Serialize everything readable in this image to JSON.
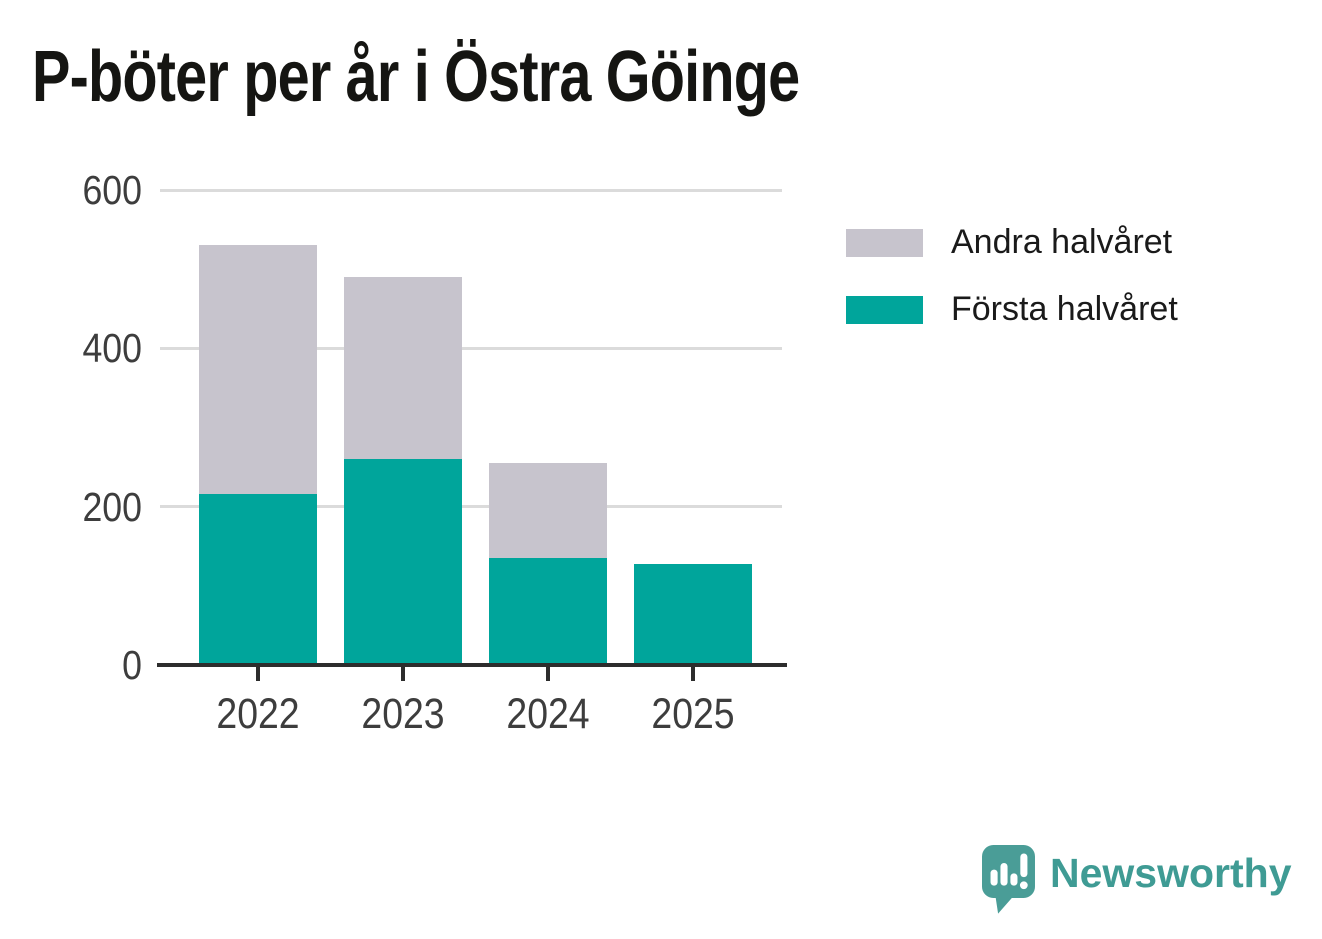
{
  "chart_data": {
    "type": "bar",
    "stacked": true,
    "title": "P-böter per år i Östra Göinge",
    "categories": [
      "2022",
      "2023",
      "2024",
      "2025"
    ],
    "series": [
      {
        "name": "Första halvåret",
        "color": "#00a59b",
        "values": [
          216,
          260,
          135,
          128
        ]
      },
      {
        "name": "Andra halvåret",
        "color": "#c7c4cd",
        "values": [
          314,
          230,
          120,
          0
        ]
      }
    ],
    "totals": [
      530,
      490,
      255,
      128
    ],
    "xlabel": "",
    "ylabel": "",
    "ylim": [
      0,
      600
    ],
    "yticks": [
      0,
      200,
      400,
      600
    ],
    "grid": "horizontal",
    "legend_position": "right"
  },
  "legend": {
    "items": [
      {
        "label": "Andra halvåret",
        "color": "#c7c4cd"
      },
      {
        "label": "Första halvåret",
        "color": "#00a59b"
      }
    ]
  },
  "footer": {
    "brand": "Newsworthy"
  },
  "colors": {
    "background": "#ffffff",
    "title_text": "#151512",
    "axis_line": "#2d2d2d",
    "tick_label": "#3d3d3d",
    "gridline": "#dbdbdb",
    "legend_text": "#1a1a1a",
    "brand_teal": "#3f9b94",
    "logo_mark_teal": "#4a9d97"
  }
}
